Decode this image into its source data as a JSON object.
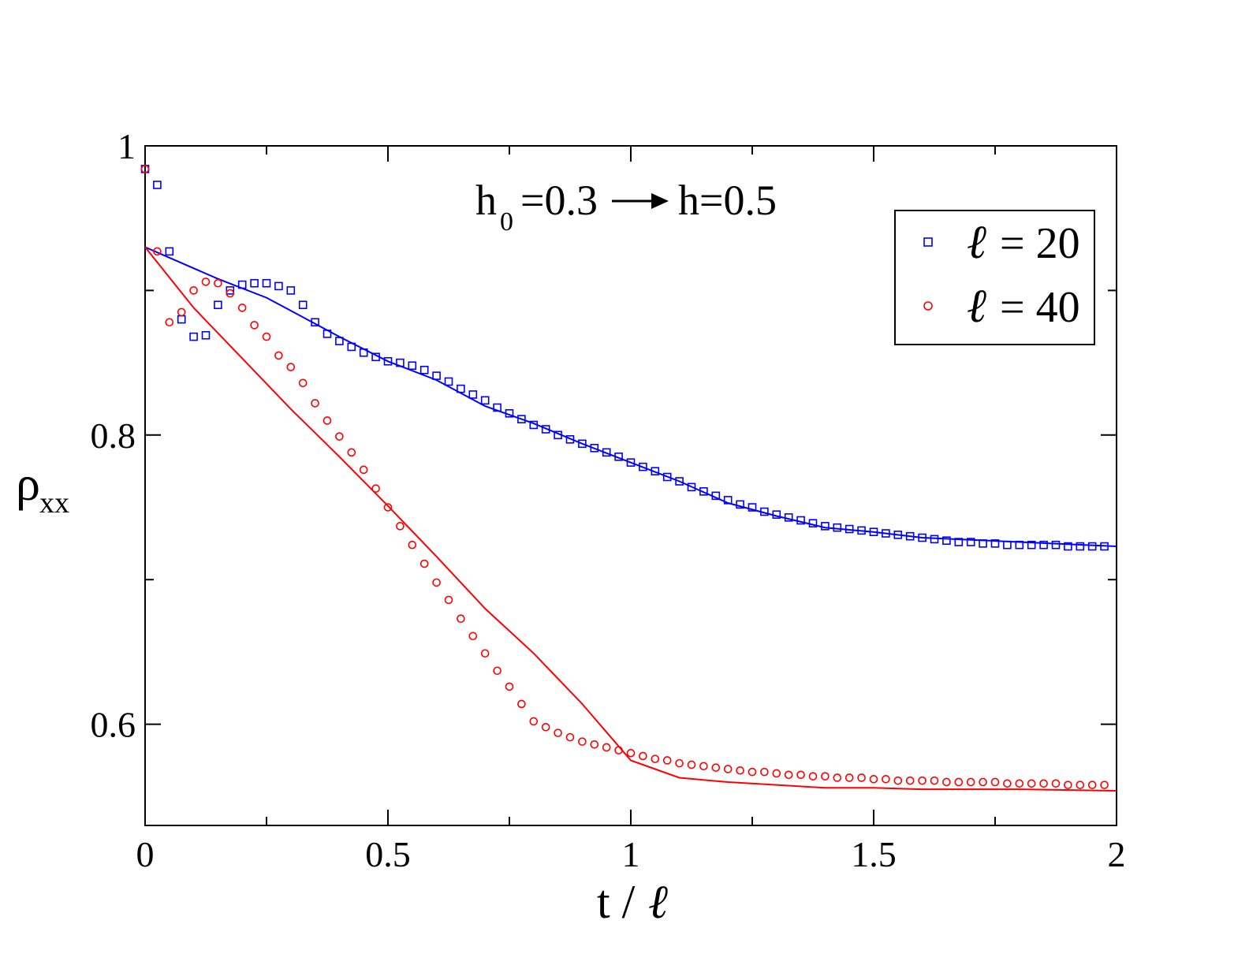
{
  "chart_data": {
    "type": "scatter",
    "annotation": {
      "lhs_base": "h",
      "lhs_sub": "0",
      "lhs_rest": "=0.3",
      "rhs": "h=0.5"
    },
    "xlabel": {
      "main": "t /",
      "ell": "ℓ"
    },
    "ylabel": {
      "main": "ρ",
      "sub": "xx"
    },
    "xlim": [
      0,
      2
    ],
    "ylim": [
      0.53,
      1.0
    ],
    "xticks": [
      {
        "value": 0,
        "label": "0"
      },
      {
        "value": 0.5,
        "label": "0.5"
      },
      {
        "value": 1,
        "label": "1"
      },
      {
        "value": 1.5,
        "label": "1.5"
      },
      {
        "value": 2,
        "label": "2"
      }
    ],
    "yticks": [
      {
        "value": 0.6,
        "label": "0.6"
      },
      {
        "value": 0.8,
        "label": "0.8"
      },
      {
        "value": 1.0,
        "label": "1"
      }
    ],
    "x_minor_ticks": [
      0.25,
      0.75,
      1.25,
      1.75
    ],
    "y_minor_ticks": [
      0.7,
      0.9
    ],
    "legend": {
      "placement": "top-right",
      "entries": [
        {
          "series": 0,
          "label": "= 20"
        },
        {
          "series": 1,
          "label": "= 40"
        }
      ]
    },
    "series": [
      {
        "name": "ℓ = 20",
        "color": "#0000ff",
        "marker": "square",
        "x": [
          0,
          0.025,
          0.05,
          0.075,
          0.1,
          0.125,
          0.15,
          0.175,
          0.2,
          0.225,
          0.25,
          0.275,
          0.3,
          0.325,
          0.35,
          0.375,
          0.4,
          0.425,
          0.45,
          0.475,
          0.5,
          0.525,
          0.55,
          0.575,
          0.6,
          0.625,
          0.65,
          0.675,
          0.7,
          0.725,
          0.75,
          0.775,
          0.8,
          0.825,
          0.85,
          0.875,
          0.9,
          0.925,
          0.95,
          0.975,
          1.0,
          1.025,
          1.05,
          1.075,
          1.1,
          1.125,
          1.15,
          1.175,
          1.2,
          1.225,
          1.25,
          1.275,
          1.3,
          1.325,
          1.35,
          1.375,
          1.4,
          1.425,
          1.45,
          1.475,
          1.5,
          1.525,
          1.55,
          1.575,
          1.6,
          1.625,
          1.65,
          1.675,
          1.7,
          1.725,
          1.75,
          1.775,
          1.8,
          1.825,
          1.85,
          1.875,
          1.9,
          1.925,
          1.95,
          1.975
        ],
        "y": [
          0.984,
          0.973,
          0.927,
          0.88,
          0.868,
          0.869,
          0.89,
          0.9,
          0.904,
          0.905,
          0.905,
          0.903,
          0.9,
          0.89,
          0.878,
          0.87,
          0.865,
          0.861,
          0.857,
          0.854,
          0.851,
          0.85,
          0.848,
          0.845,
          0.841,
          0.837,
          0.832,
          0.828,
          0.824,
          0.819,
          0.815,
          0.811,
          0.807,
          0.804,
          0.8,
          0.797,
          0.794,
          0.791,
          0.788,
          0.785,
          0.781,
          0.778,
          0.775,
          0.771,
          0.768,
          0.764,
          0.761,
          0.758,
          0.755,
          0.752,
          0.75,
          0.747,
          0.745,
          0.743,
          0.741,
          0.739,
          0.737,
          0.736,
          0.735,
          0.734,
          0.733,
          0.732,
          0.731,
          0.73,
          0.729,
          0.728,
          0.727,
          0.726,
          0.726,
          0.725,
          0.725,
          0.724,
          0.724,
          0.724,
          0.724,
          0.724,
          0.723,
          0.723,
          0.723,
          0.723
        ],
        "fit_x": [
          0,
          0.15,
          0.25,
          0.4,
          0.5,
          0.6,
          0.7,
          0.8,
          0.9,
          1.0,
          1.1,
          1.2,
          1.3,
          1.4,
          1.5,
          1.6,
          1.8,
          2.0
        ],
        "fit_y": [
          0.93,
          0.908,
          0.895,
          0.868,
          0.851,
          0.838,
          0.82,
          0.808,
          0.794,
          0.781,
          0.768,
          0.753,
          0.744,
          0.736,
          0.733,
          0.729,
          0.726,
          0.723
        ]
      },
      {
        "name": "ℓ = 40",
        "color": "#ff0000",
        "marker": "circle",
        "x": [
          0,
          0.025,
          0.05,
          0.075,
          0.1,
          0.125,
          0.15,
          0.175,
          0.2,
          0.225,
          0.25,
          0.275,
          0.3,
          0.325,
          0.35,
          0.375,
          0.4,
          0.425,
          0.45,
          0.475,
          0.5,
          0.525,
          0.55,
          0.575,
          0.6,
          0.625,
          0.65,
          0.675,
          0.7,
          0.725,
          0.75,
          0.775,
          0.8,
          0.825,
          0.85,
          0.875,
          0.9,
          0.925,
          0.95,
          0.975,
          1.0,
          1.025,
          1.05,
          1.075,
          1.1,
          1.125,
          1.15,
          1.175,
          1.2,
          1.225,
          1.25,
          1.275,
          1.3,
          1.325,
          1.35,
          1.375,
          1.4,
          1.425,
          1.45,
          1.475,
          1.5,
          1.525,
          1.55,
          1.575,
          1.6,
          1.625,
          1.65,
          1.675,
          1.7,
          1.725,
          1.75,
          1.775,
          1.8,
          1.825,
          1.85,
          1.875,
          1.9,
          1.925,
          1.95,
          1.975
        ],
        "y": [
          0.984,
          0.927,
          0.878,
          0.885,
          0.9,
          0.906,
          0.905,
          0.898,
          0.888,
          0.876,
          0.868,
          0.855,
          0.847,
          0.836,
          0.822,
          0.81,
          0.799,
          0.788,
          0.776,
          0.763,
          0.75,
          0.737,
          0.724,
          0.711,
          0.698,
          0.686,
          0.673,
          0.661,
          0.649,
          0.637,
          0.626,
          0.614,
          0.602,
          0.598,
          0.594,
          0.591,
          0.588,
          0.586,
          0.584,
          0.582,
          0.58,
          0.578,
          0.576,
          0.575,
          0.573,
          0.572,
          0.571,
          0.57,
          0.569,
          0.568,
          0.567,
          0.567,
          0.566,
          0.565,
          0.565,
          0.564,
          0.564,
          0.563,
          0.563,
          0.563,
          0.562,
          0.562,
          0.561,
          0.561,
          0.561,
          0.561,
          0.56,
          0.56,
          0.56,
          0.56,
          0.56,
          0.559,
          0.559,
          0.559,
          0.559,
          0.559,
          0.558,
          0.558,
          0.558,
          0.558
        ],
        "fit_x": [
          0,
          0.1,
          0.2,
          0.3,
          0.4,
          0.5,
          0.6,
          0.7,
          0.8,
          0.9,
          1.0,
          1.05,
          1.1,
          1.2,
          1.3,
          1.4,
          1.5,
          1.6,
          1.8,
          2.0
        ],
        "fit_y": [
          0.93,
          0.888,
          0.853,
          0.818,
          0.785,
          0.751,
          0.716,
          0.68,
          0.649,
          0.614,
          0.575,
          0.569,
          0.563,
          0.56,
          0.558,
          0.556,
          0.556,
          0.555,
          0.555,
          0.554
        ]
      }
    ]
  }
}
